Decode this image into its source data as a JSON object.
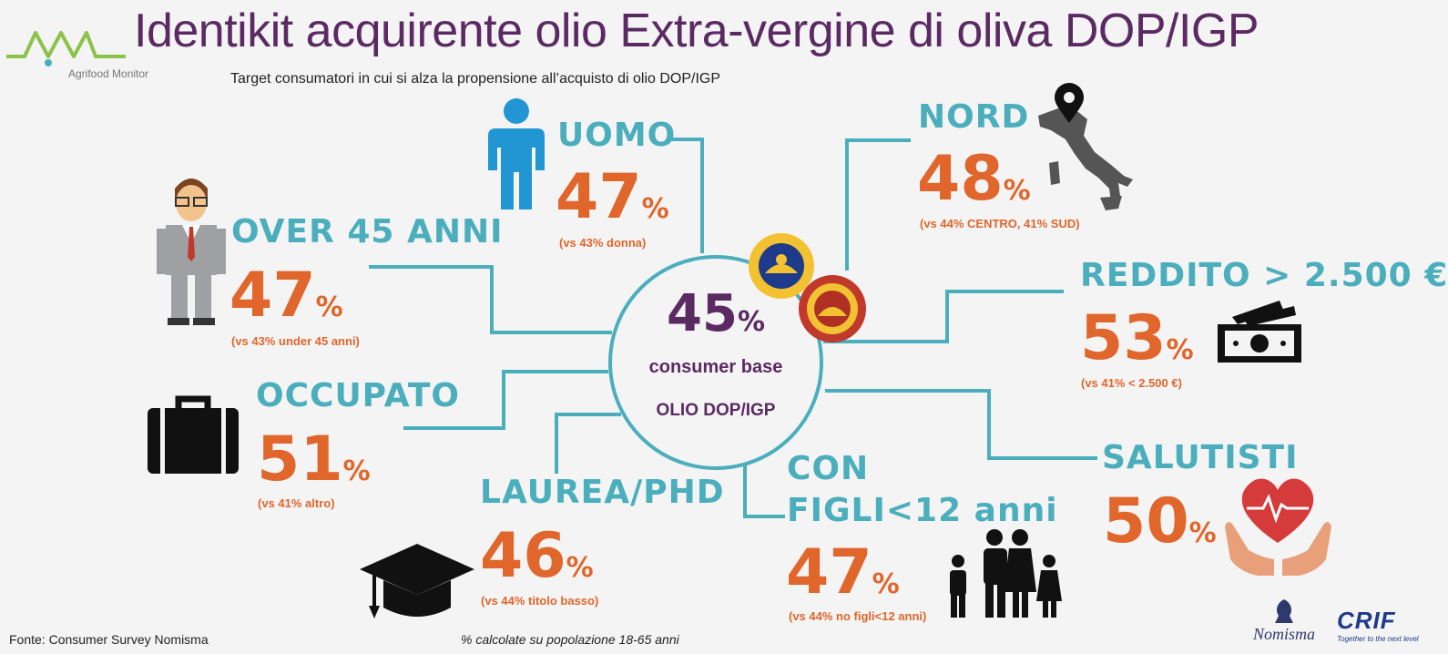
{
  "title": "Identikit acquirente olio Extra-vergine di oliva DOP/IGP",
  "subtitle": "Target consumatori in cui si alza la propensione all’acquisto di olio DOP/IGP",
  "logo_left": "Agrifood Monitor",
  "center": {
    "value": "45",
    "symbol": "%",
    "line1": "consumer base",
    "line2": "OLIO DOP/IGP"
  },
  "segments": {
    "uomo": {
      "label": "UOMO",
      "value": "47",
      "symbol": "%",
      "comparison": "(vs 43% donna)"
    },
    "over45": {
      "label": "OVER 45 ANNI",
      "value": "47",
      "symbol": "%",
      "comparison": "(vs 43% under 45 anni)"
    },
    "occupato": {
      "label": "OCCUPATO",
      "value": "51",
      "symbol": "%",
      "comparison": "(vs 41% altro)"
    },
    "laurea": {
      "label": "LAUREA/PHD",
      "value": "46",
      "symbol": "%",
      "comparison": "(vs 44% titolo basso)"
    },
    "nord": {
      "label": "NORD",
      "value": "48",
      "symbol": "%",
      "comparison": "(vs 44% CENTRO, 41% SUD)"
    },
    "reddito": {
      "label": "REDDITO > 2.500 €",
      "value": "53",
      "symbol": "%",
      "comparison": "(vs 41% < 2.500 €)"
    },
    "salutisti": {
      "label": "SALUTISTI",
      "value": "50",
      "symbol": "%",
      "comparison": ""
    },
    "figli": {
      "label1": "CON",
      "label2": "FIGLI<12 anni",
      "value": "47",
      "symbol": "%",
      "comparison": "(vs 44% no figli<12 anni)"
    }
  },
  "footer": {
    "source": "Fonte:  Consumer Survey Nomisma",
    "note": "% calcolate su popolazione 18-65 anni"
  },
  "logos_right": {
    "nomisma": "Nomisma",
    "crif": "CRIF",
    "crif_tagline": "Together to the next level"
  },
  "colors": {
    "title": "#5b2a63",
    "label": "#4aaebd",
    "value": "#e0662b",
    "icon_blue": "#2196d3"
  },
  "icons": [
    "man-icon",
    "businessman-icon",
    "briefcase-icon",
    "graduation-cap-icon",
    "italy-map-icon",
    "location-pin-icon",
    "money-icon",
    "heart-hands-icon",
    "family-icon",
    "igp-seal-icon",
    "dop-seal-icon"
  ]
}
